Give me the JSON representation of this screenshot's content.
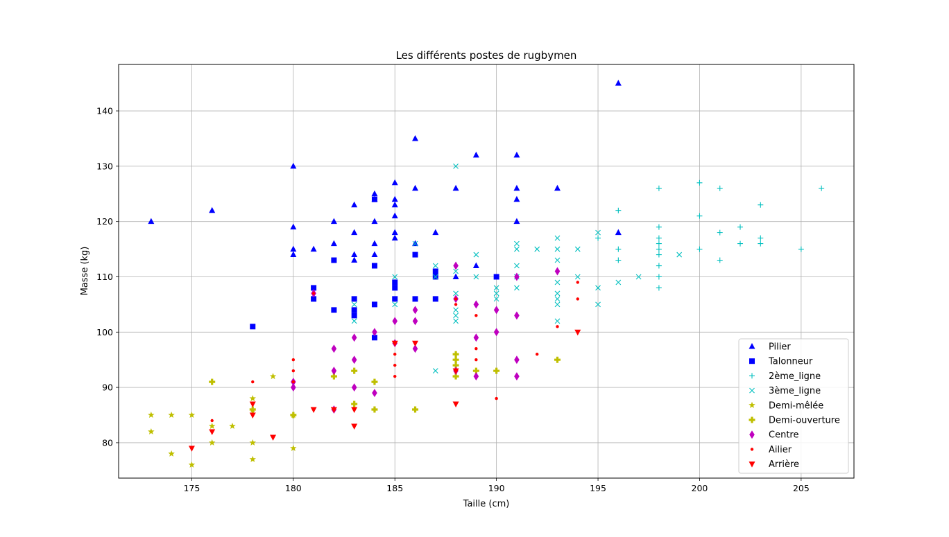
{
  "chart_data": {
    "type": "scatter",
    "title": "Les différents postes de rugbymen",
    "xlabel": "Taille (cm)",
    "ylabel": "Masse (kg)",
    "xlim": [
      171.4,
      207.6
    ],
    "ylim": [
      73.6,
      148.4
    ],
    "xticks": [
      175,
      180,
      185,
      190,
      195,
      200,
      205
    ],
    "yticks": [
      80,
      90,
      100,
      110,
      120,
      130,
      140
    ],
    "grid": true,
    "legend_position": "lower-right",
    "series": [
      {
        "name": "Pilier",
        "marker": "triangle-up",
        "color": "#0000ff",
        "points": [
          [
            173,
            120
          ],
          [
            176,
            122
          ],
          [
            180,
            130
          ],
          [
            180,
            119
          ],
          [
            180,
            115
          ],
          [
            180,
            114
          ],
          [
            181,
            115
          ],
          [
            182,
            120
          ],
          [
            182,
            116
          ],
          [
            183,
            123
          ],
          [
            183,
            118
          ],
          [
            183,
            114
          ],
          [
            183,
            113
          ],
          [
            184,
            125
          ],
          [
            184,
            124
          ],
          [
            184,
            120
          ],
          [
            184,
            116
          ],
          [
            184,
            114
          ],
          [
            185,
            127
          ],
          [
            185,
            124
          ],
          [
            185,
            123
          ],
          [
            185,
            121
          ],
          [
            185,
            118
          ],
          [
            185,
            117
          ],
          [
            186,
            135
          ],
          [
            186,
            126
          ],
          [
            186,
            116
          ],
          [
            187,
            118
          ],
          [
            188,
            126
          ],
          [
            188,
            110
          ],
          [
            189,
            132
          ],
          [
            189,
            112
          ],
          [
            191,
            132
          ],
          [
            191,
            126
          ],
          [
            191,
            124
          ],
          [
            191,
            120
          ],
          [
            193,
            126
          ],
          [
            196,
            145
          ],
          [
            196,
            118
          ]
        ]
      },
      {
        "name": "Talonneur",
        "marker": "square",
        "color": "#0000ff",
        "points": [
          [
            178,
            101
          ],
          [
            181,
            108
          ],
          [
            181,
            106
          ],
          [
            182,
            113
          ],
          [
            182,
            104
          ],
          [
            183,
            106
          ],
          [
            183,
            104
          ],
          [
            183,
            103
          ],
          [
            184,
            124
          ],
          [
            184,
            112
          ],
          [
            184,
            105
          ],
          [
            184,
            99
          ],
          [
            185,
            109
          ],
          [
            185,
            108
          ],
          [
            185,
            106
          ],
          [
            186,
            114
          ],
          [
            186,
            106
          ],
          [
            187,
            111
          ],
          [
            187,
            110
          ],
          [
            187,
            106
          ],
          [
            190,
            110
          ]
        ]
      },
      {
        "name": "2ème_ligne",
        "marker": "plus",
        "color": "#00bfbf",
        "points": [
          [
            195,
            117
          ],
          [
            196,
            122
          ],
          [
            196,
            115
          ],
          [
            196,
            113
          ],
          [
            198,
            126
          ],
          [
            198,
            119
          ],
          [
            198,
            117
          ],
          [
            198,
            116
          ],
          [
            198,
            115
          ],
          [
            198,
            114
          ],
          [
            198,
            112
          ],
          [
            198,
            110
          ],
          [
            198,
            108
          ],
          [
            200,
            127
          ],
          [
            200,
            121
          ],
          [
            200,
            115
          ],
          [
            201,
            126
          ],
          [
            201,
            118
          ],
          [
            201,
            113
          ],
          [
            202,
            119
          ],
          [
            202,
            116
          ],
          [
            203,
            123
          ],
          [
            203,
            117
          ],
          [
            203,
            116
          ],
          [
            205,
            115
          ],
          [
            206,
            126
          ]
        ]
      },
      {
        "name": "3ème_ligne",
        "marker": "x",
        "color": "#00bfbf",
        "points": [
          [
            183,
            105
          ],
          [
            183,
            102
          ],
          [
            185,
            110
          ],
          [
            185,
            105
          ],
          [
            186,
            116
          ],
          [
            187,
            112
          ],
          [
            187,
            110
          ],
          [
            187,
            93
          ],
          [
            188,
            130
          ],
          [
            188,
            111
          ],
          [
            188,
            107
          ],
          [
            188,
            104
          ],
          [
            188,
            103
          ],
          [
            188,
            102
          ],
          [
            189,
            114
          ],
          [
            189,
            110
          ],
          [
            190,
            108
          ],
          [
            190,
            107
          ],
          [
            190,
            106
          ],
          [
            191,
            116
          ],
          [
            191,
            115
          ],
          [
            191,
            112
          ],
          [
            191,
            110
          ],
          [
            191,
            108
          ],
          [
            192,
            115
          ],
          [
            193,
            117
          ],
          [
            193,
            115
          ],
          [
            193,
            113
          ],
          [
            193,
            109
          ],
          [
            193,
            107
          ],
          [
            193,
            106
          ],
          [
            193,
            105
          ],
          [
            193,
            102
          ],
          [
            194,
            115
          ],
          [
            194,
            110
          ],
          [
            195,
            118
          ],
          [
            195,
            108
          ],
          [
            195,
            105
          ],
          [
            196,
            109
          ],
          [
            197,
            110
          ],
          [
            199,
            114
          ]
        ]
      },
      {
        "name": "Demi-mêlée",
        "marker": "star",
        "color": "#bfbf00",
        "points": [
          [
            173,
            85
          ],
          [
            173,
            82
          ],
          [
            174,
            85
          ],
          [
            174,
            78
          ],
          [
            175,
            85
          ],
          [
            175,
            76
          ],
          [
            176,
            83
          ],
          [
            176,
            80
          ],
          [
            177,
            83
          ],
          [
            178,
            88
          ],
          [
            178,
            86
          ],
          [
            178,
            80
          ],
          [
            178,
            77
          ],
          [
            179,
            92
          ],
          [
            180,
            85
          ],
          [
            180,
            79
          ]
        ]
      },
      {
        "name": "Demi-ouverture",
        "marker": "plus-filled",
        "color": "#bfbf00",
        "points": [
          [
            176,
            91
          ],
          [
            178,
            86
          ],
          [
            180,
            85
          ],
          [
            182,
            92
          ],
          [
            183,
            93
          ],
          [
            183,
            87
          ],
          [
            184,
            91
          ],
          [
            184,
            86
          ],
          [
            186,
            86
          ],
          [
            188,
            96
          ],
          [
            188,
            95
          ],
          [
            188,
            94
          ],
          [
            188,
            92
          ],
          [
            189,
            93
          ],
          [
            190,
            93
          ],
          [
            193,
            95
          ]
        ]
      },
      {
        "name": "Centre",
        "marker": "diamond",
        "color": "#bf00bf",
        "points": [
          [
            180,
            91
          ],
          [
            180,
            90
          ],
          [
            181,
            107
          ],
          [
            182,
            97
          ],
          [
            182,
            93
          ],
          [
            182,
            86
          ],
          [
            183,
            99
          ],
          [
            183,
            95
          ],
          [
            183,
            90
          ],
          [
            184,
            100
          ],
          [
            184,
            89
          ],
          [
            185,
            102
          ],
          [
            185,
            98
          ],
          [
            186,
            104
          ],
          [
            186,
            102
          ],
          [
            186,
            97
          ],
          [
            188,
            112
          ],
          [
            188,
            106
          ],
          [
            188,
            93
          ],
          [
            189,
            105
          ],
          [
            189,
            99
          ],
          [
            189,
            92
          ],
          [
            190,
            104
          ],
          [
            190,
            100
          ],
          [
            191,
            110
          ],
          [
            191,
            103
          ],
          [
            191,
            95
          ],
          [
            191,
            92
          ],
          [
            193,
            111
          ]
        ]
      },
      {
        "name": "Ailier",
        "marker": "dot",
        "color": "#ff0000",
        "points": [
          [
            175,
            79
          ],
          [
            176,
            84
          ],
          [
            178,
            91
          ],
          [
            180,
            95
          ],
          [
            180,
            93
          ],
          [
            180,
            91
          ],
          [
            181,
            107
          ],
          [
            182,
            86
          ],
          [
            183,
            86
          ],
          [
            185,
            98
          ],
          [
            185,
            96
          ],
          [
            185,
            94
          ],
          [
            185,
            92
          ],
          [
            188,
            106
          ],
          [
            188,
            105
          ],
          [
            188,
            93
          ],
          [
            189,
            103
          ],
          [
            189,
            97
          ],
          [
            189,
            95
          ],
          [
            190,
            88
          ],
          [
            192,
            96
          ],
          [
            193,
            101
          ],
          [
            194,
            109
          ],
          [
            194,
            106
          ]
        ]
      },
      {
        "name": "Arrière",
        "marker": "triangle-down",
        "color": "#ff0000",
        "points": [
          [
            175,
            79
          ],
          [
            176,
            82
          ],
          [
            178,
            87
          ],
          [
            178,
            85
          ],
          [
            179,
            81
          ],
          [
            181,
            86
          ],
          [
            182,
            86
          ],
          [
            183,
            86
          ],
          [
            183,
            83
          ],
          [
            185,
            98
          ],
          [
            186,
            98
          ],
          [
            188,
            93
          ],
          [
            188,
            87
          ],
          [
            194,
            100
          ]
        ]
      }
    ]
  }
}
